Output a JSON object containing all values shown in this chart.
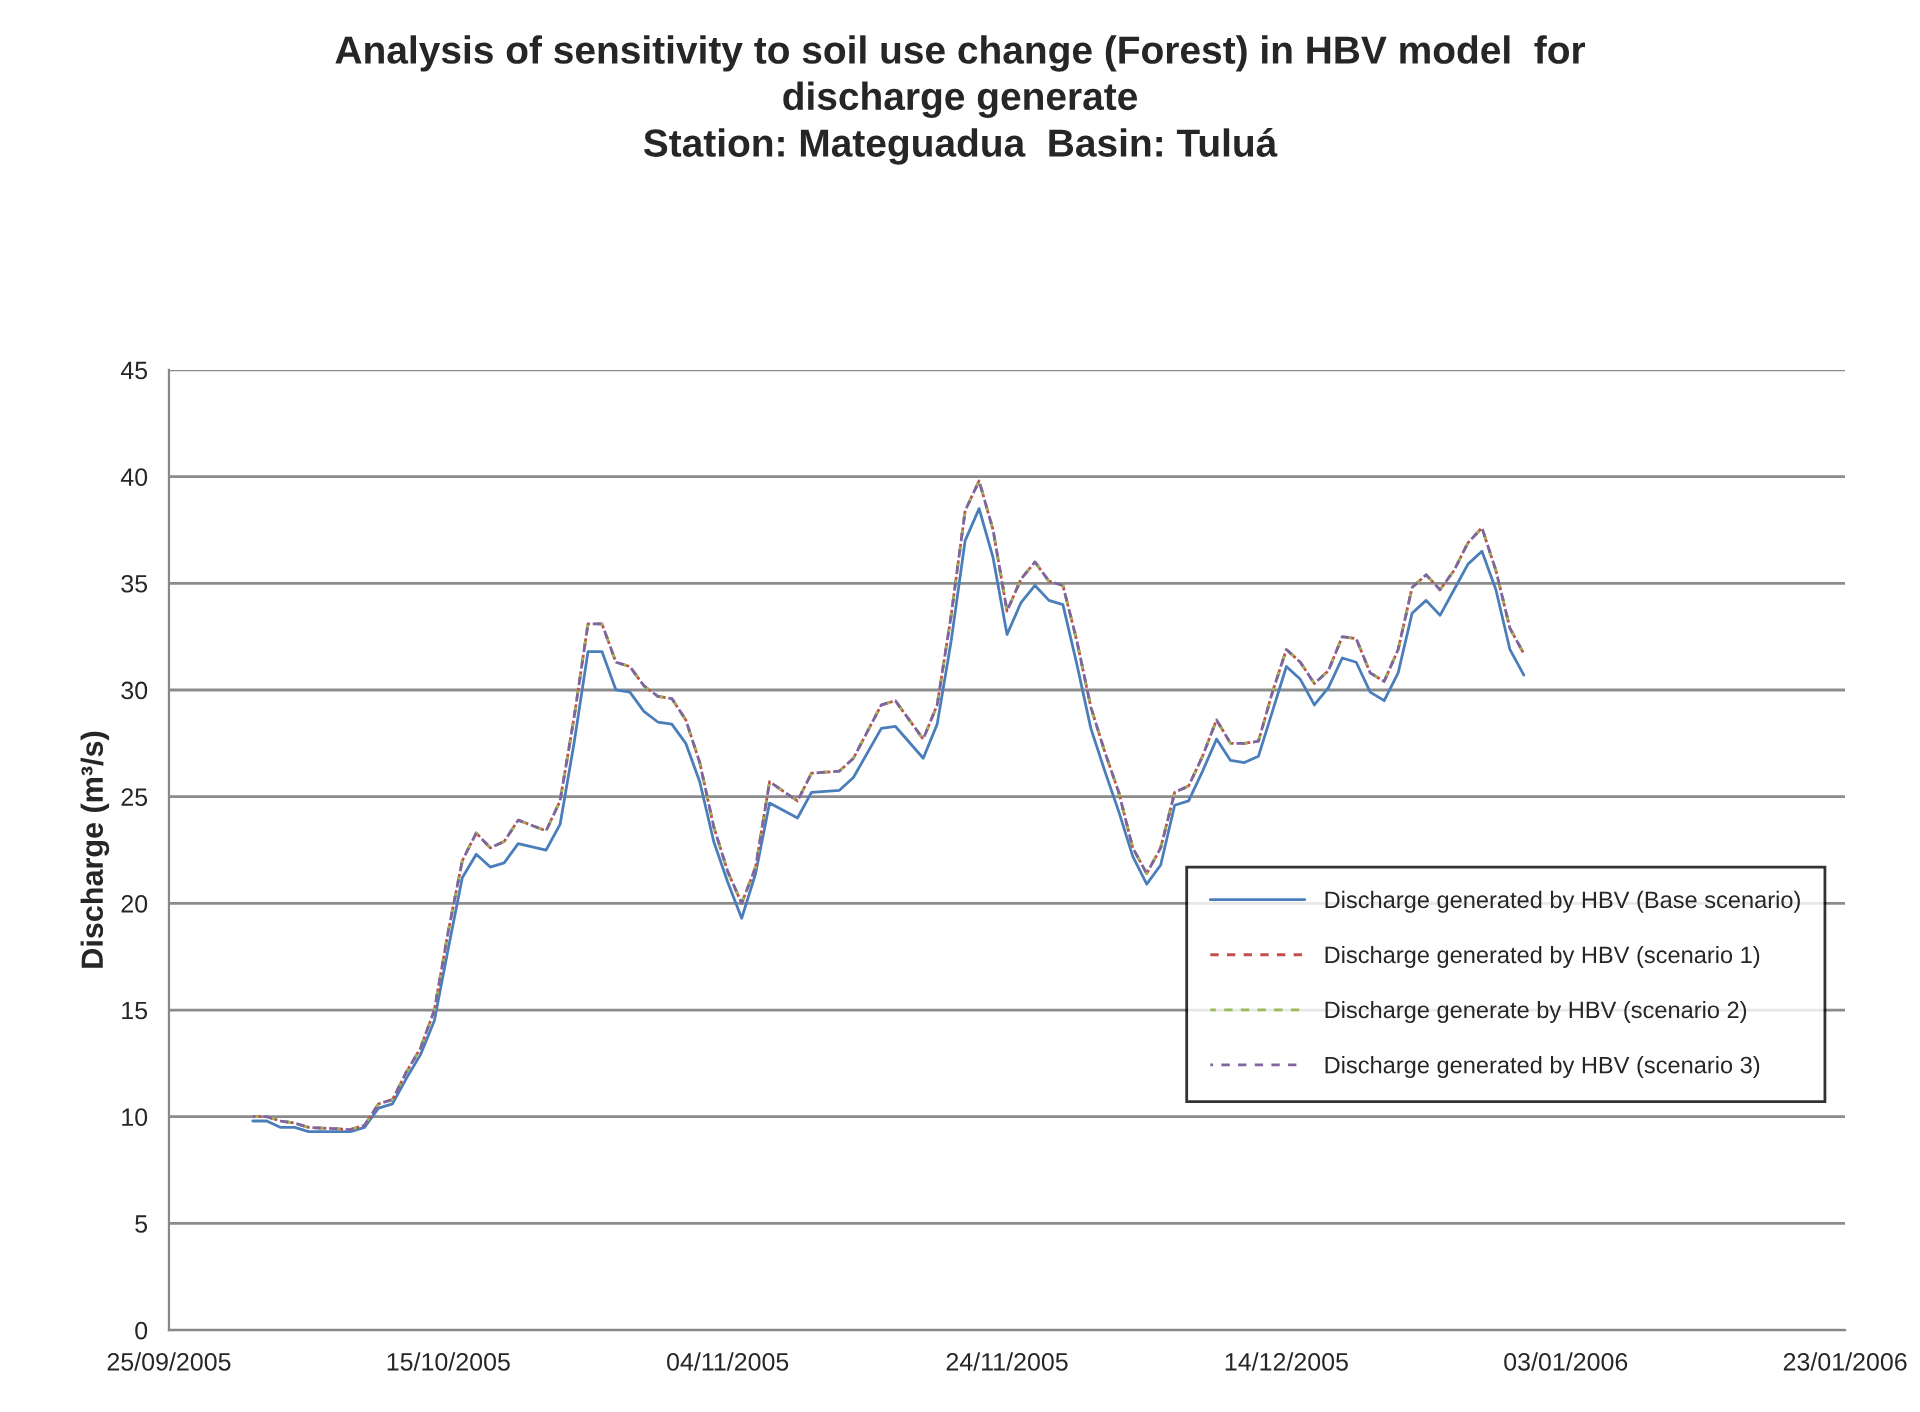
{
  "chart_data": {
    "type": "line",
    "title": "Analysis of sensitivity to soil use change (Forest) in HBV model  for\ndischarge generate\nStation: Mateguadua  Basin: Tuluá",
    "ylabel": "Discharge (m³/s)",
    "x": [
      "2005-10-01",
      "2005-10-02",
      "2005-10-03",
      "2005-10-04",
      "2005-10-05",
      "2005-10-08",
      "2005-10-09",
      "2005-10-10",
      "2005-10-11",
      "2005-10-12",
      "2005-10-13",
      "2005-10-14",
      "2005-10-15",
      "2005-10-16",
      "2005-10-17",
      "2005-10-18",
      "2005-10-19",
      "2005-10-20",
      "2005-10-22",
      "2005-10-23",
      "2005-10-24",
      "2005-10-25",
      "2005-10-26",
      "2005-10-27",
      "2005-10-28",
      "2005-10-29",
      "2005-10-30",
      "2005-10-31",
      "2005-11-01",
      "2005-11-02",
      "2005-11-03",
      "2005-11-04",
      "2005-11-05",
      "2005-11-06",
      "2005-11-07",
      "2005-11-09",
      "2005-11-10",
      "2005-11-12",
      "2005-11-13",
      "2005-11-15",
      "2005-11-16",
      "2005-11-18",
      "2005-11-19",
      "2005-11-20",
      "2005-11-21",
      "2005-11-22",
      "2005-11-23",
      "2005-11-24",
      "2005-11-25",
      "2005-11-26",
      "2005-11-27",
      "2005-11-28",
      "2005-11-29",
      "2005-11-30",
      "2005-12-01",
      "2005-12-02",
      "2005-12-03",
      "2005-12-04",
      "2005-12-05",
      "2005-12-06",
      "2005-12-07",
      "2005-12-08",
      "2005-12-09",
      "2005-12-10",
      "2005-12-11",
      "2005-12-12",
      "2005-12-13",
      "2005-12-14",
      "2005-12-15",
      "2005-12-16",
      "2005-12-17",
      "2005-12-18",
      "2005-12-19",
      "2005-12-20",
      "2005-12-21",
      "2005-12-22",
      "2005-12-23",
      "2005-12-24",
      "2005-12-25",
      "2005-12-26",
      "2005-12-27",
      "2005-12-28",
      "2005-12-29",
      "2005-12-30",
      "2005-12-31"
    ],
    "series": [
      {
        "name": "Discharge generated by HBV (Base scenario)",
        "color": "#4a7ebb",
        "line_style": "solid",
        "values": [
          9.8,
          9.8,
          9.5,
          9.5,
          9.3,
          9.3,
          9.5,
          10.4,
          10.6,
          11.8,
          12.9,
          14.5,
          17.9,
          21.2,
          22.3,
          21.7,
          21.9,
          22.8,
          22.5,
          23.7,
          27.5,
          31.8,
          31.8,
          30.0,
          29.9,
          29.0,
          28.5,
          28.4,
          27.5,
          25.7,
          22.9,
          21.0,
          19.3,
          21.4,
          24.7,
          24.0,
          25.2,
          25.3,
          25.9,
          28.2,
          28.3,
          26.8,
          28.4,
          32.3,
          37.0,
          38.5,
          36.2,
          32.6,
          34.1,
          34.9,
          34.2,
          34.0,
          31.2,
          28.2,
          26.2,
          24.3,
          22.2,
          20.9,
          21.8,
          24.6,
          24.8,
          26.2,
          27.7,
          26.7,
          26.6,
          26.9,
          29.0,
          31.1,
          30.5,
          29.3,
          30.1,
          31.5,
          31.3,
          29.9,
          29.5,
          30.8,
          33.6,
          34.2,
          33.5,
          34.7,
          35.9,
          36.5,
          34.7,
          31.9,
          30.7
        ]
      },
      {
        "name": "Discharge generated by HBV (scenario 1)",
        "color": "#c0504d",
        "line_style": "dashed",
        "values": [
          10.0,
          10.0,
          9.8,
          9.7,
          9.5,
          9.4,
          9.6,
          10.6,
          10.8,
          12.1,
          13.2,
          15.0,
          18.7,
          22.0,
          23.3,
          22.6,
          22.9,
          23.9,
          23.4,
          24.8,
          28.7,
          33.1,
          33.1,
          31.3,
          31.1,
          30.2,
          29.7,
          29.6,
          28.6,
          26.6,
          23.6,
          21.5,
          20.0,
          21.7,
          25.7,
          24.8,
          26.1,
          26.2,
          26.8,
          29.3,
          29.5,
          27.7,
          29.3,
          33.5,
          38.4,
          39.8,
          37.5,
          33.7,
          35.2,
          36.0,
          35.1,
          34.9,
          32.3,
          29.2,
          27.1,
          25.2,
          22.6,
          21.4,
          22.6,
          25.2,
          25.5,
          26.9,
          28.6,
          27.5,
          27.5,
          27.6,
          29.9,
          31.9,
          31.3,
          30.3,
          30.9,
          32.5,
          32.4,
          30.8,
          30.4,
          31.9,
          34.8,
          35.4,
          34.7,
          35.6,
          36.9,
          37.6,
          35.6,
          32.9,
          31.7
        ]
      },
      {
        "name": "Discharge generate by HBV (scenario 2)",
        "color": "#9bbb59",
        "line_style": "dashed",
        "values": [
          10.0,
          10.0,
          9.8,
          9.7,
          9.5,
          9.4,
          9.6,
          10.6,
          10.8,
          12.1,
          13.2,
          15.0,
          18.7,
          22.0,
          23.3,
          22.6,
          22.9,
          23.9,
          23.4,
          24.8,
          28.7,
          33.1,
          33.1,
          31.3,
          31.1,
          30.2,
          29.7,
          29.6,
          28.6,
          26.6,
          23.6,
          21.5,
          20.0,
          21.7,
          25.7,
          24.8,
          26.1,
          26.2,
          26.8,
          29.3,
          29.5,
          27.7,
          29.3,
          33.5,
          38.4,
          39.8,
          37.5,
          33.7,
          35.2,
          36.0,
          35.1,
          34.9,
          32.3,
          29.2,
          27.1,
          25.2,
          22.6,
          21.4,
          22.6,
          25.2,
          25.5,
          26.9,
          28.6,
          27.5,
          27.5,
          27.6,
          29.9,
          31.9,
          31.3,
          30.3,
          30.9,
          32.5,
          32.4,
          30.8,
          30.4,
          31.9,
          34.8,
          35.4,
          34.7,
          35.6,
          36.9,
          37.6,
          35.6,
          32.9,
          31.7
        ]
      },
      {
        "name": "Discharge generated by HBV (scenario 3)",
        "color": "#8064a2",
        "line_style": "dashed",
        "values": [
          10.0,
          10.0,
          9.8,
          9.7,
          9.5,
          9.4,
          9.6,
          10.6,
          10.8,
          12.1,
          13.2,
          15.0,
          18.7,
          22.0,
          23.3,
          22.6,
          22.9,
          23.9,
          23.4,
          24.8,
          28.7,
          33.1,
          33.1,
          31.3,
          31.1,
          30.2,
          29.7,
          29.6,
          28.6,
          26.6,
          23.6,
          21.5,
          20.0,
          21.7,
          25.7,
          24.8,
          26.1,
          26.2,
          26.8,
          29.3,
          29.5,
          27.7,
          29.3,
          33.5,
          38.4,
          39.8,
          37.5,
          33.7,
          35.2,
          36.0,
          35.1,
          34.9,
          32.3,
          29.2,
          27.1,
          25.2,
          22.6,
          21.4,
          22.6,
          25.2,
          25.5,
          26.9,
          28.6,
          27.5,
          27.5,
          27.6,
          29.9,
          31.9,
          31.3,
          30.3,
          30.9,
          32.5,
          32.4,
          30.8,
          30.4,
          31.9,
          34.8,
          35.4,
          34.7,
          35.6,
          36.9,
          37.6,
          35.6,
          32.9,
          31.7
        ]
      }
    ],
    "xlim": [
      "2005-09-25",
      "2006-01-23"
    ],
    "xticks": [
      {
        "value": "2005-09-25",
        "label": "25/09/2005"
      },
      {
        "value": "2005-10-15",
        "label": "15/10/2005"
      },
      {
        "value": "2005-11-04",
        "label": "04/11/2005"
      },
      {
        "value": "2005-11-24",
        "label": "24/11/2005"
      },
      {
        "value": "2005-12-14",
        "label": "14/12/2005"
      },
      {
        "value": "2006-01-03",
        "label": "03/01/2006"
      },
      {
        "value": "2006-01-23",
        "label": "23/01/2006"
      }
    ],
    "ylim": [
      0,
      45
    ],
    "yticks": [
      0,
      5,
      10,
      15,
      20,
      25,
      30,
      35,
      40,
      45
    ],
    "grid": "y",
    "legend": "right"
  }
}
